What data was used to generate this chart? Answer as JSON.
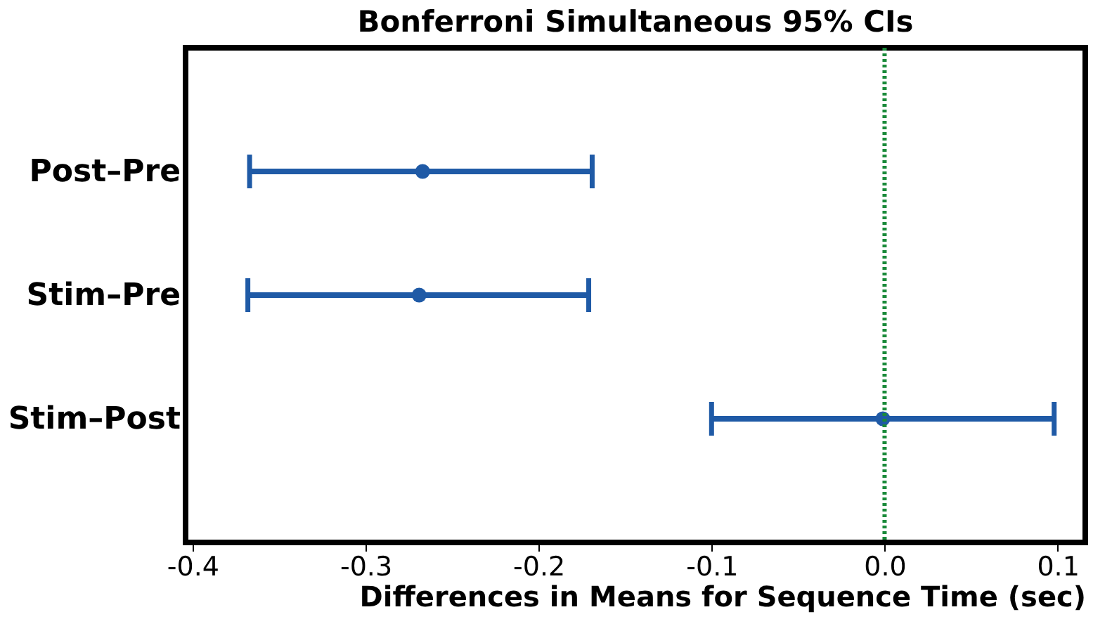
{
  "chart_data": {
    "type": "scatter",
    "orientation": "horizontal",
    "title": "Bonferroni Simultaneous 95% CIs",
    "xlabel": "Differences in Means for Sequence Time (sec)",
    "categories": [
      "Post–Pre",
      "Stim–Pre",
      "Stim–Post"
    ],
    "series": [
      {
        "color": "#1f5aa6",
        "values": [
          -0.267,
          -0.269,
          -0.001
        ],
        "errors": [
          [
            -0.367,
            -0.169
          ],
          [
            -0.368,
            -0.171
          ],
          [
            -0.1,
            0.098
          ]
        ]
      }
    ],
    "xlim": [
      -0.404,
      0.116
    ],
    "xticks": [
      {
        "value": -0.4,
        "label": "-0.4"
      },
      {
        "value": -0.3,
        "label": "-0.3"
      },
      {
        "value": -0.2,
        "label": "-0.2"
      },
      {
        "value": -0.1,
        "label": "-0.1"
      },
      {
        "value": 0,
        "label": "0.0"
      },
      {
        "value": 0.1,
        "label": "0.1"
      }
    ],
    "ref_lines": [
      {
        "axis": "x",
        "value": 0,
        "color": "#1a8a3a",
        "line_style": "dotted"
      }
    ],
    "grid": false,
    "marker": "circle"
  }
}
